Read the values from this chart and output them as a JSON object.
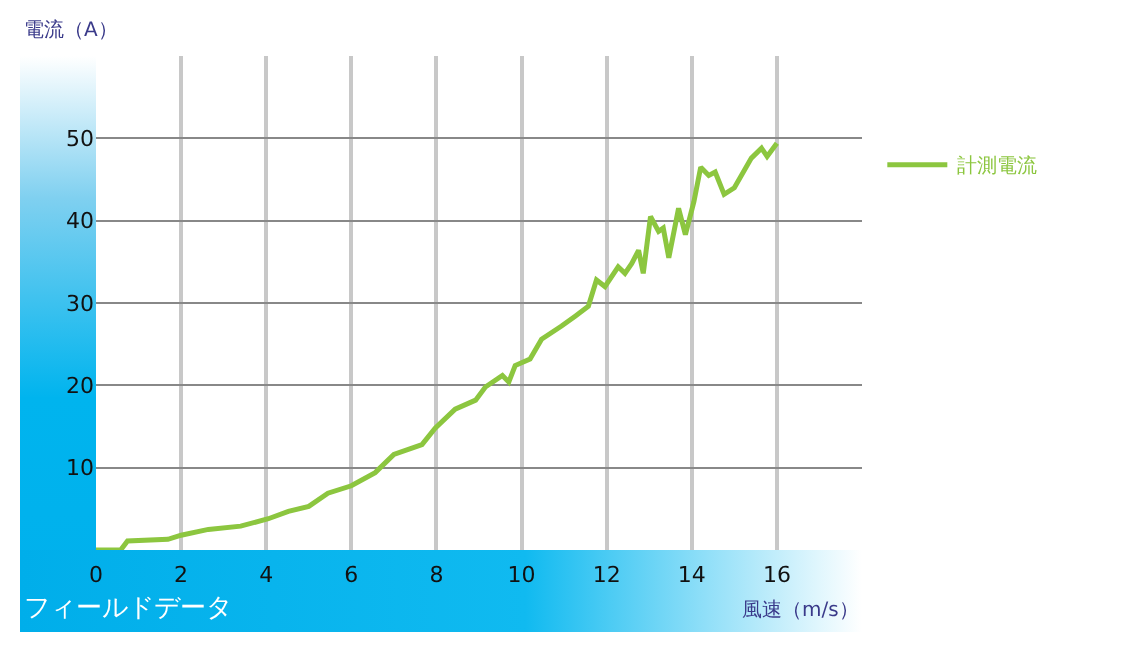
{
  "chart_data": {
    "type": "line",
    "title": "フィールドデータ",
    "xlabel": "風速（m/s）",
    "ylabel": "電流（A）",
    "x": [
      0,
      0.58,
      0.74,
      1.69,
      2,
      2.64,
      3.4,
      4.05,
      4.52,
      5,
      5.45,
      6,
      6.56,
      7,
      7.66,
      7.97,
      8.44,
      8.92,
      9.15,
      9.55,
      9.7,
      9.85,
      10.2,
      10.47,
      10.94,
      11.26,
      11.57,
      11.76,
      11.96,
      12.27,
      12.43,
      12.59,
      12.75,
      12.86,
      13.03,
      13.22,
      13.33,
      13.46,
      13.69,
      13.85,
      14.05,
      14.21,
      14.4,
      14.55,
      14.76,
      15,
      15.4,
      15.64,
      15.77,
      16
    ],
    "series": [
      {
        "name": "計測電流",
        "color": "#8cc63f",
        "values": [
          0,
          0,
          1.1,
          1.3,
          1.8,
          2.5,
          2.9,
          3.8,
          4.7,
          5.3,
          6.9,
          7.8,
          9.4,
          11.6,
          12.8,
          14.8,
          17.1,
          18.2,
          19.8,
          21.2,
          20.4,
          22.4,
          23.2,
          25.6,
          27.2,
          28.4,
          29.6,
          32.8,
          32,
          34.4,
          33.6,
          34.8,
          36.4,
          33.6,
          40.5,
          38.7,
          39.1,
          35.5,
          41.5,
          38.3,
          42.3,
          46.5,
          45.5,
          45.9,
          43.2,
          44,
          47.6,
          48.8,
          47.8,
          49.4
        ]
      }
    ],
    "xlim": [
      0,
      18
    ],
    "xticks": [
      0,
      2,
      4,
      6,
      8,
      10,
      12,
      14,
      16
    ],
    "ylim": [
      0,
      60
    ],
    "yticks": [
      10,
      20,
      30,
      40,
      50
    ],
    "grid": true,
    "legend": "right",
    "marker": "none",
    "line_style": "solid"
  }
}
